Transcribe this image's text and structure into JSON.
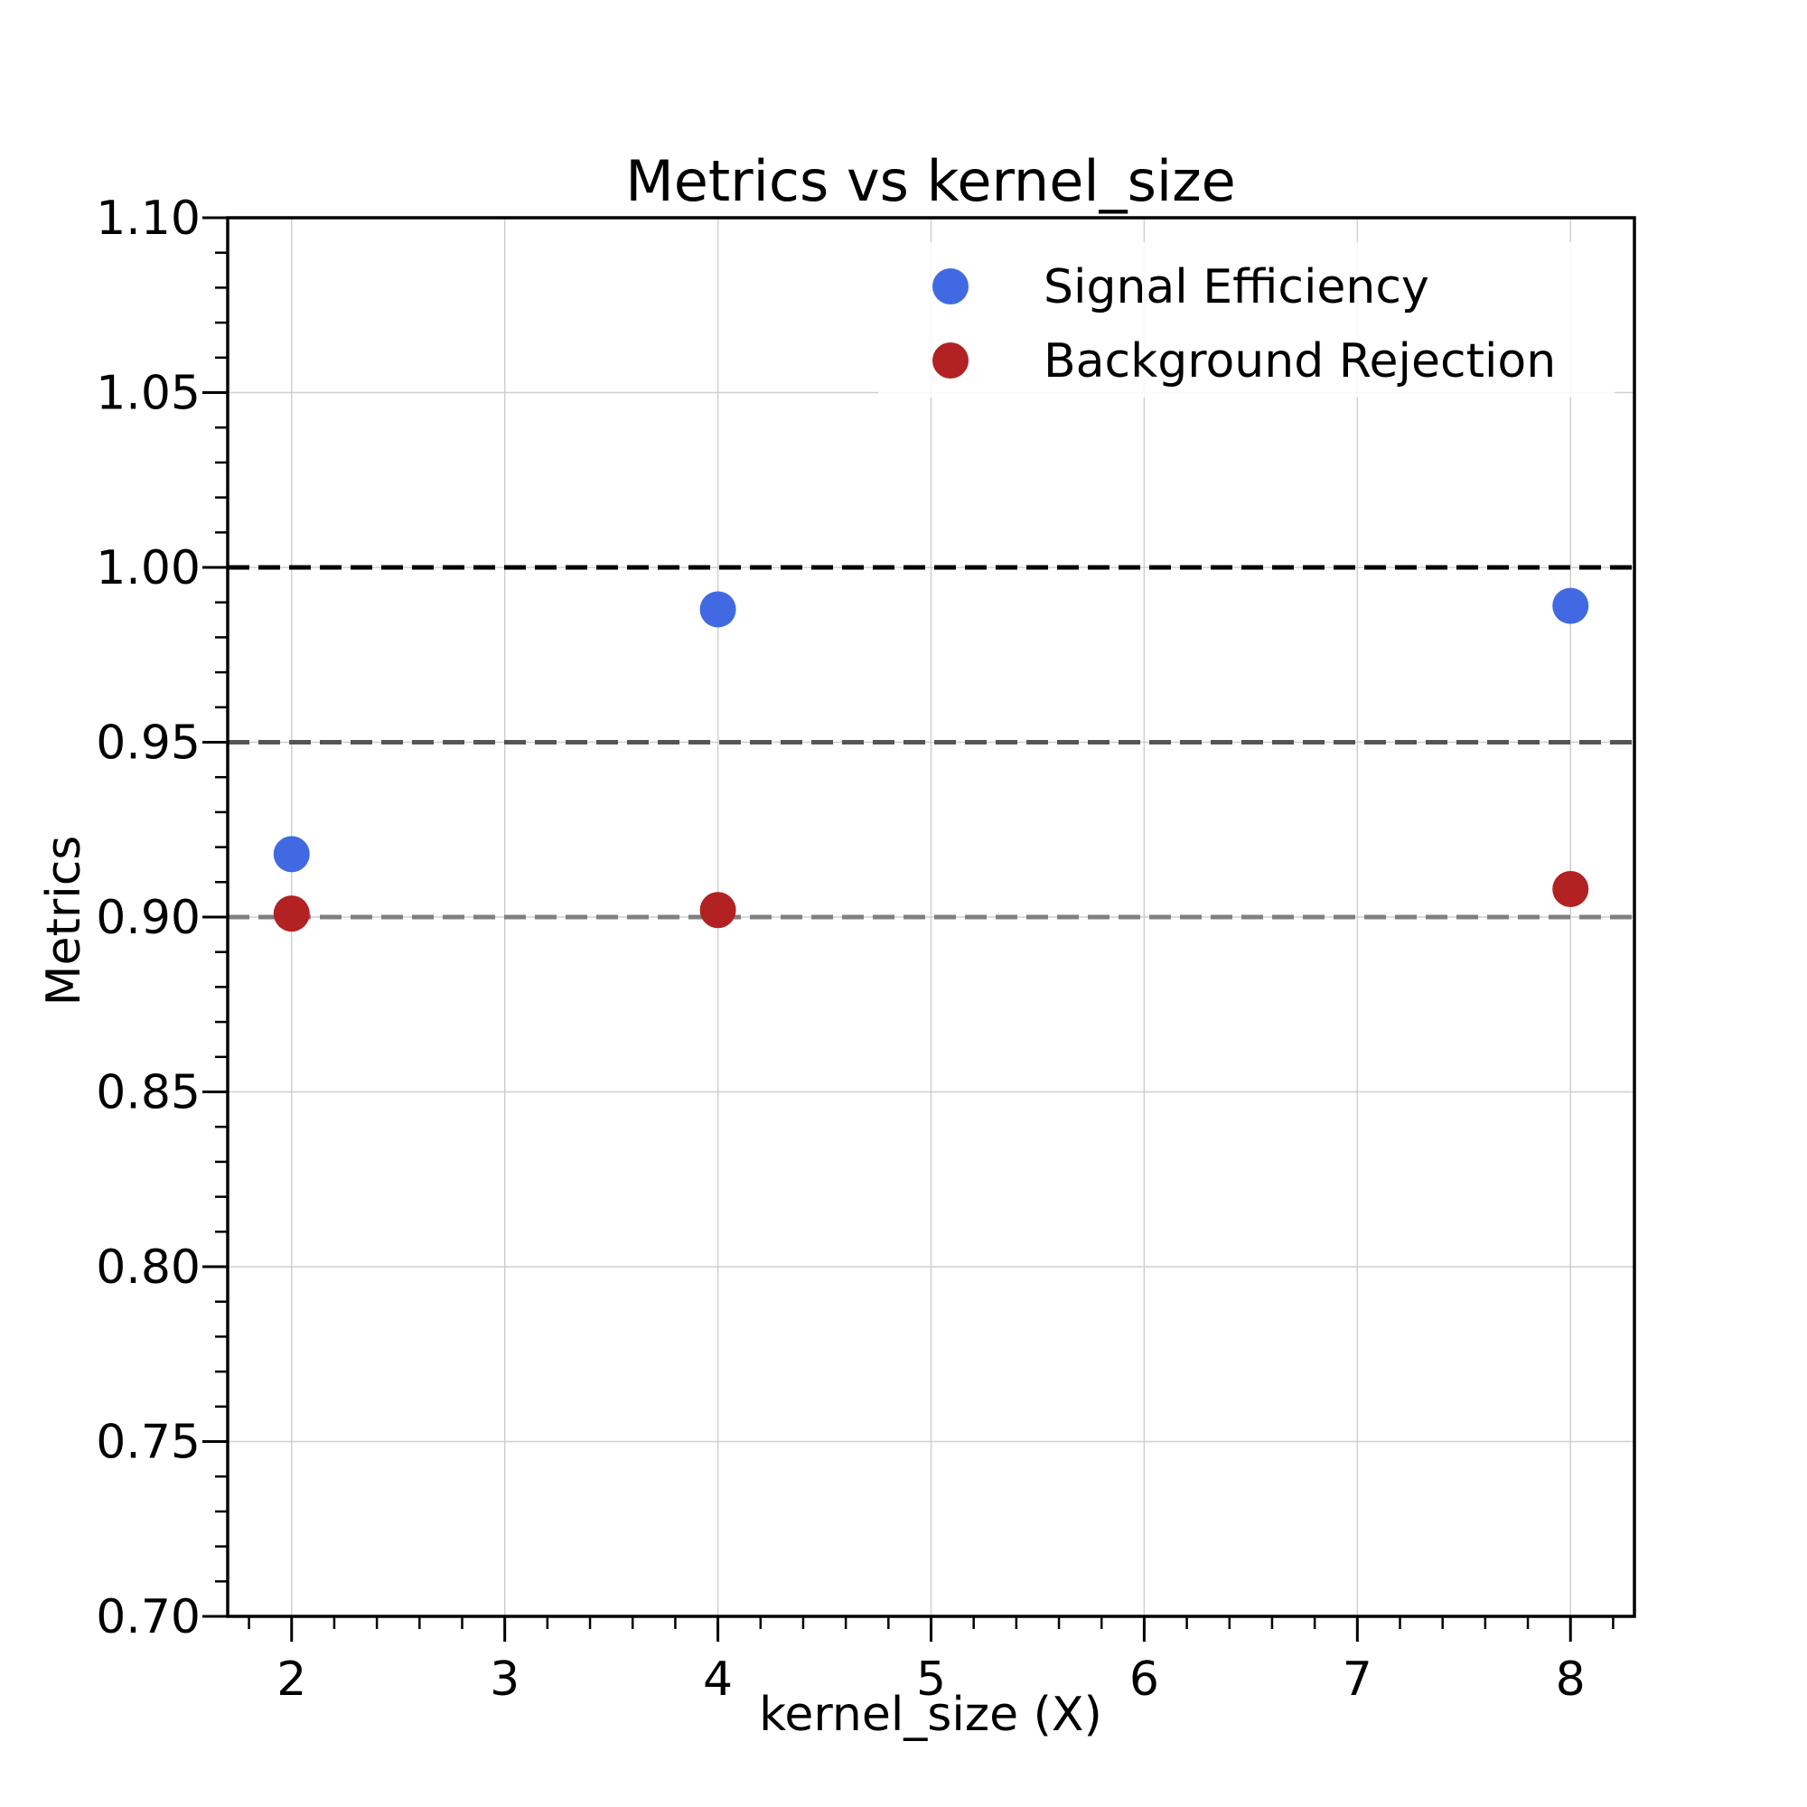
{
  "chart_data": {
    "type": "scatter",
    "title": "Metrics vs kernel_size",
    "xlabel": "kernel_size (X)",
    "ylabel": "Metrics",
    "xlim": [
      1.7,
      8.3
    ],
    "ylim": [
      0.7,
      1.1
    ],
    "xticks": [
      2,
      3,
      4,
      5,
      6,
      7,
      8
    ],
    "xtick_labels": [
      "2",
      "3",
      "4",
      "5",
      "6",
      "7",
      "8"
    ],
    "yticks": [
      0.7,
      0.75,
      0.8,
      0.85,
      0.9,
      0.95,
      1.0,
      1.05,
      1.1
    ],
    "ytick_labels": [
      "0.70",
      "0.75",
      "0.80",
      "0.85",
      "0.90",
      "0.95",
      "1.00",
      "1.05",
      "1.10"
    ],
    "grid": true,
    "legend_position": "top-right",
    "series": [
      {
        "name": "Signal Efficiency",
        "color": "#4169e1",
        "x": [
          2,
          4,
          8
        ],
        "y": [
          0.918,
          0.988,
          0.989
        ]
      },
      {
        "name": "Background Rejection",
        "color": "#b22222",
        "x": [
          2,
          4,
          8
        ],
        "y": [
          0.901,
          0.902,
          0.908
        ]
      }
    ],
    "reference_lines": [
      {
        "y": 1.0,
        "color": "#000000",
        "style": "dashed"
      },
      {
        "y": 0.95,
        "color": "#555555",
        "style": "dashed"
      },
      {
        "y": 0.9,
        "color": "#808080",
        "style": "dashed"
      }
    ]
  }
}
